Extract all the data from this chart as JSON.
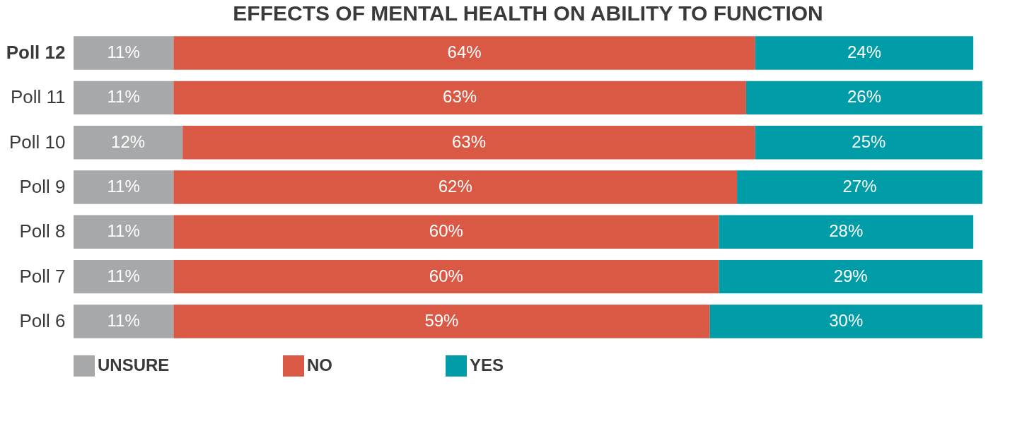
{
  "chart_data": {
    "type": "bar",
    "orientation": "horizontal",
    "stacked": true,
    "title": "EFFECTS OF MENTAL HEALTH ON ABILITY TO FUNCTION",
    "categories": [
      "Poll 12",
      "Poll 11",
      "Poll 10",
      "Poll 9",
      "Poll 8",
      "Poll 7",
      "Poll 6"
    ],
    "series": [
      {
        "name": "UNSURE",
        "color": "#a7a8aa",
        "values": [
          11,
          11,
          12,
          11,
          11,
          11,
          11
        ],
        "value_labels": [
          "11%",
          "11%",
          "12%",
          "11%",
          "11%",
          "11%",
          "11%"
        ]
      },
      {
        "name": "NO",
        "color": "#d95944",
        "values": [
          64,
          63,
          63,
          62,
          60,
          60,
          59
        ],
        "value_labels": [
          "64%",
          "63%",
          "63%",
          "62%",
          "60%",
          "60%",
          "59%"
        ]
      },
      {
        "name": "YES",
        "color": "#009ca8",
        "values": [
          24,
          26,
          25,
          27,
          28,
          29,
          30
        ],
        "value_labels": [
          "24%",
          "26%",
          "25%",
          "27%",
          "28%",
          "29%",
          "30%"
        ]
      }
    ],
    "legend": "bottom"
  }
}
